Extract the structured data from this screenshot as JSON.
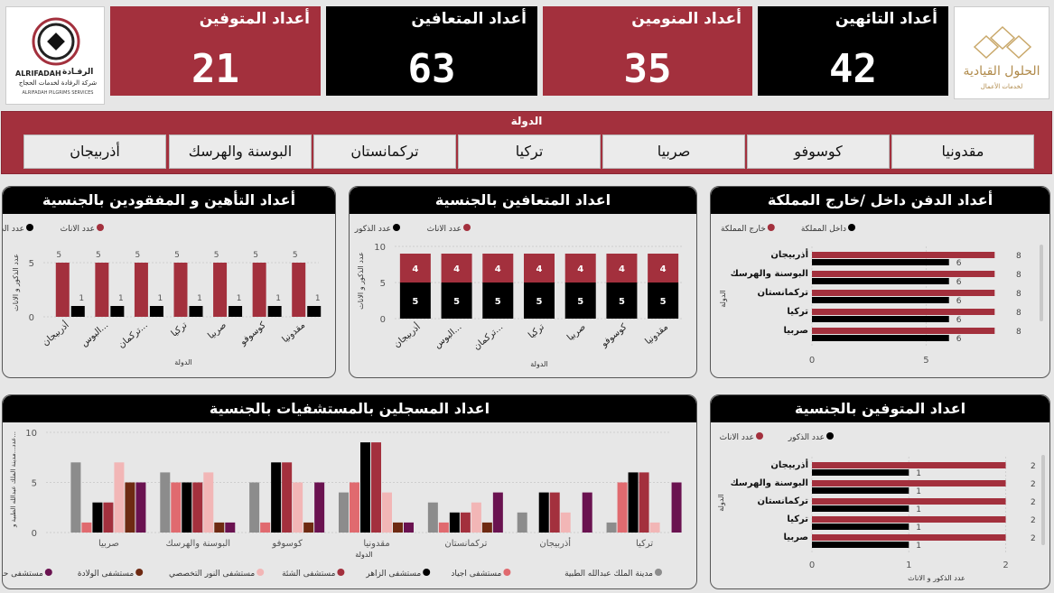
{
  "logos": {
    "left": {
      "latin": "ALRIFADAH",
      "arabic": "الرفـادة",
      "arabic_sub": "شركة الرفادة لخدمات الحجاج",
      "latin_sub": "ALRIFADAH PILGRIMS SERVICES"
    },
    "right": {
      "arabic": "الحلول القيادية",
      "arabic_sub": "لخدمات الأعمال"
    }
  },
  "kpis": [
    {
      "label": "أعداد المتوفين",
      "value": "21",
      "style": "red"
    },
    {
      "label": "أعداد المتعافين",
      "value": "63",
      "style": "black"
    },
    {
      "label": "أعداد المنومين",
      "value": "35",
      "style": "red"
    },
    {
      "label": "أعداد التائهين",
      "value": "42",
      "style": "black"
    }
  ],
  "slicer": {
    "title": "الدولة",
    "options": [
      "أذربيجان",
      "البوسنة والهرسك",
      "تركمانستان",
      "تركيا",
      "صربيا",
      "كوسوفو",
      "مقدونيا"
    ]
  },
  "colors": {
    "red": "#a3303d",
    "black": "#000000",
    "grey": "#8c8c8c",
    "pink": "#e06a6f",
    "brown": "#6e2a12",
    "lightpink": "#f2b6b6",
    "purple": "#6a1250"
  },
  "chart_data": [
    {
      "id": "lost",
      "type": "bar",
      "title": "أعداد التأهين و المفقودين بالجنسية",
      "categories": [
        "أذربيجان",
        "البوس...",
        "تركمان...",
        "تركيا",
        "صربيا",
        "كوسوفو",
        "مقدونيا"
      ],
      "series": [
        {
          "name": "عدد الاناث",
          "color": "#a3303d",
          "values": [
            5,
            5,
            5,
            5,
            5,
            5,
            5
          ]
        },
        {
          "name": "عدد الذكور",
          "color": "#000000",
          "values": [
            1,
            1,
            1,
            1,
            1,
            1,
            1
          ]
        }
      ],
      "xlabel": "الدولة",
      "ylabel": "عدد الذكور و الاناث",
      "yticks": [
        0,
        5
      ],
      "ylim": [
        0,
        6.5
      ]
    },
    {
      "id": "recovered",
      "type": "stacked-bar",
      "title": "اعداد المتعافين بالجنسية",
      "categories": [
        "أذربيجان",
        "البوس...",
        "تركمان...",
        "تركيا",
        "صربيا",
        "كوسوفو",
        "مقدونيا"
      ],
      "series": [
        {
          "name": "عدد الذكور",
          "color": "#000000",
          "values": [
            5,
            5,
            5,
            5,
            5,
            5,
            5
          ]
        },
        {
          "name": "عدد الاناث",
          "color": "#a3303d",
          "values": [
            4,
            4,
            4,
            4,
            4,
            4,
            4
          ]
        }
      ],
      "xlabel": "الدولة",
      "ylabel": "عدد الذكور و الاناث",
      "yticks": [
        0,
        5,
        10
      ],
      "ylim": [
        0,
        10
      ]
    },
    {
      "id": "burial",
      "type": "hbar",
      "title": "أعداد الدفن داخل /خارج المملكة",
      "categories": [
        "أذربيجان",
        "البوسنة والهرسك",
        "تركمانستان",
        "تركيا",
        "صربيا"
      ],
      "series": [
        {
          "name": "خارج المملكة",
          "color": "#a3303d",
          "values": [
            8,
            8,
            8,
            8,
            8
          ]
        },
        {
          "name": "داخل المملكة",
          "color": "#000000",
          "values": [
            6,
            6,
            6,
            6,
            6
          ]
        }
      ],
      "ylabel": "الدولة",
      "xticks": [
        0,
        5
      ],
      "xlim": [
        0,
        8.7
      ]
    },
    {
      "id": "hospitals",
      "type": "bar",
      "title": "اعداد المسجلين بالمستشفيات بالجنسية",
      "categories": [
        "صربيا",
        "البوسنة والهرسك",
        "كوسوفو",
        "مقدونيا",
        "تركمانستان",
        "أذربيجان",
        "تركيا"
      ],
      "series": [
        {
          "name": "مدينة الملك عبدالله الطبية",
          "color": "#8c8c8c",
          "values": [
            7,
            6,
            5,
            4,
            3,
            2,
            1
          ]
        },
        {
          "name": "مستشفى اجياد",
          "color": "#e06a6f",
          "values": [
            1,
            5,
            1,
            5,
            1,
            null,
            5
          ]
        },
        {
          "name": "مستشفى الزاهر",
          "color": "#000000",
          "values": [
            3,
            5,
            7,
            9,
            2,
            4,
            6
          ]
        },
        {
          "name": "مستشفى الشئة",
          "color": "#a3303d",
          "values": [
            3,
            5,
            7,
            9,
            2,
            4,
            6
          ]
        },
        {
          "name": "مستشفى النور التخصصي",
          "color": "#f2b6b6",
          "values": [
            7,
            6,
            5,
            4,
            3,
            2,
            1
          ]
        },
        {
          "name": "مستشفى الولادة",
          "color": "#6e2a12",
          "values": [
            5,
            1,
            1,
            1,
            1,
            null,
            null
          ]
        },
        {
          "name": "مستشفى حراء",
          "color": "#6a1250",
          "values": [
            5,
            1,
            5,
            1,
            4,
            4,
            5
          ]
        }
      ],
      "xlabel": "الدولة",
      "ylabel": "عدد...مدينة الملك عبدالله الطبية و...",
      "yticks": [
        0,
        5,
        10
      ],
      "ylim": [
        0,
        10
      ]
    },
    {
      "id": "deceased",
      "type": "hbar",
      "title": "اعداد المتوفين بالجنسية",
      "categories": [
        "أذربيجان",
        "البوسنة والهرسك",
        "تركمانستان",
        "تركيا",
        "صربيا"
      ],
      "series": [
        {
          "name": "عدد الاناث",
          "color": "#a3303d",
          "values": [
            2,
            2,
            2,
            2,
            2
          ]
        },
        {
          "name": "عدد الذكور",
          "color": "#000000",
          "values": [
            1,
            1,
            1,
            1,
            1
          ]
        }
      ],
      "xlabel": "عدد الذكور و الاناث",
      "ylabel": "الدولة",
      "xticks": [
        0,
        1,
        2
      ],
      "xlim": [
        0,
        2.2
      ]
    }
  ]
}
